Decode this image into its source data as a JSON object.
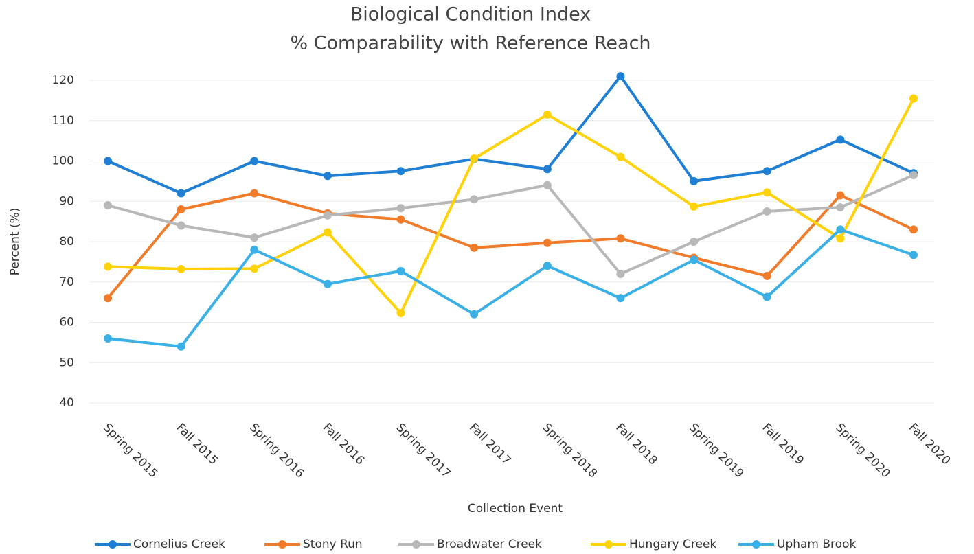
{
  "chart_data": {
    "type": "line",
    "title": "Biological Condition Index",
    "subtitle": "% Comparability with Reference Reach",
    "x_label": "Collection Event",
    "y_label": "Percent (%)",
    "categories": [
      "Spring 2015",
      "Fall 2015",
      "Spring 2016",
      "Fall 2016",
      "Spring 2017",
      "Fall 2017",
      "Spring 2018",
      "Fall 2018",
      "Spring 2019",
      "Fall 2019",
      "Spring 2020",
      "Fall 2020"
    ],
    "series": [
      {
        "name": "Cornelius Creek",
        "color": "#1f7fd4",
        "values": [
          100,
          92,
          100,
          96.3,
          97.5,
          100.5,
          98,
          121,
          95,
          97.5,
          105.3,
          97
        ]
      },
      {
        "name": "Stony Run",
        "color": "#f07b2a",
        "values": [
          66,
          88,
          92,
          87,
          85.5,
          78.5,
          79.7,
          80.8,
          76,
          71.5,
          91.5,
          83
        ]
      },
      {
        "name": "Broadwater Creek",
        "color": "#b8b8b8",
        "values": [
          89,
          84,
          81,
          86.5,
          88.3,
          90.5,
          94,
          72,
          80,
          87.5,
          88.5,
          96.5
        ]
      },
      {
        "name": "Hungary Creek",
        "color": "#ffd20a",
        "values": [
          73.8,
          73.2,
          73.3,
          82.3,
          62.3,
          100.6,
          111.5,
          101,
          88.7,
          92.2,
          80.8,
          115.5
        ]
      },
      {
        "name": "Upham Brook",
        "color": "#3bb0e6",
        "values": [
          56,
          54,
          78,
          69.5,
          72.7,
          62,
          74,
          66,
          75.5,
          66.3,
          83,
          76.7
        ]
      }
    ],
    "ylim": [
      40,
      120
    ],
    "yticks": [
      40,
      50,
      60,
      70,
      80,
      90,
      100,
      110,
      120
    ],
    "grid": true,
    "legend": "bottom"
  }
}
